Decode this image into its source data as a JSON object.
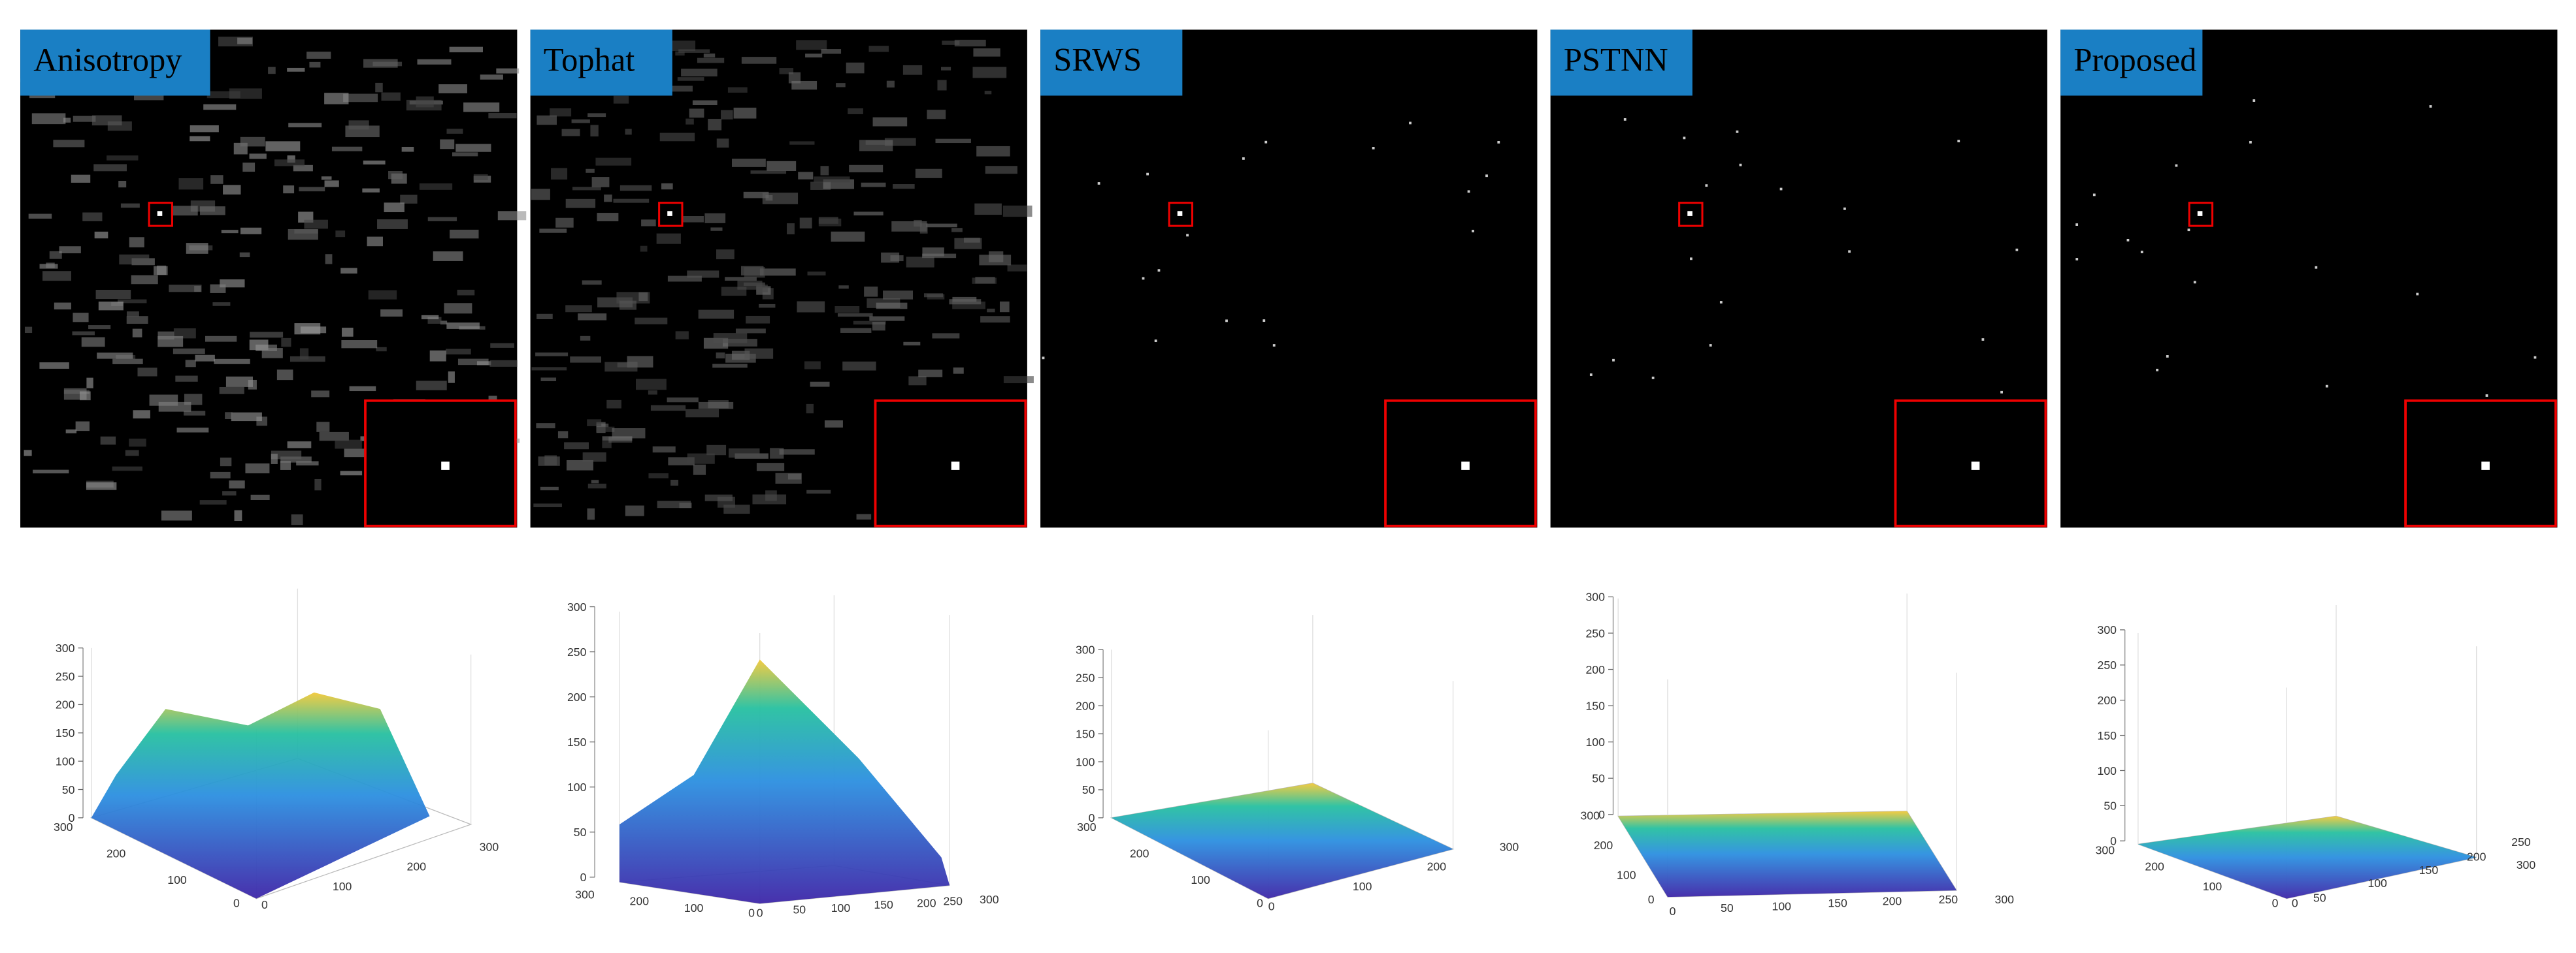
{
  "panels": [
    {
      "label": "Anisotropy"
    },
    {
      "label": "Tophat"
    },
    {
      "label": "SRWS"
    },
    {
      "label": "PSTNN"
    },
    {
      "label": "Proposed"
    }
  ],
  "plots": [
    {
      "zticks": [
        "0",
        "50",
        "100",
        "150",
        "200",
        "250",
        "300"
      ],
      "yticks": [
        "300",
        "200",
        "100",
        "0"
      ],
      "xticks": [
        "0",
        "100",
        "200",
        "300"
      ]
    },
    {
      "zticks": [
        "0",
        "50",
        "100",
        "150",
        "200",
        "250",
        "300"
      ],
      "yticks": [
        "300",
        "200",
        "100",
        "0"
      ],
      "xticks": [
        "0",
        "50",
        "100",
        "150",
        "200",
        "250",
        "300"
      ]
    },
    {
      "zticks": [
        "0",
        "50",
        "100",
        "150",
        "200",
        "250",
        "300"
      ],
      "yticks": [
        "300",
        "200",
        "100",
        "0"
      ],
      "xticks": [
        "0",
        "100",
        "200",
        "300"
      ]
    },
    {
      "zticks": [
        "0",
        "50",
        "100",
        "150",
        "200",
        "250",
        "300"
      ],
      "yticks": [
        "300",
        "200",
        "100",
        "0"
      ],
      "xticks": [
        "0",
        "50",
        "100",
        "150",
        "200",
        "250",
        "300"
      ]
    },
    {
      "zticks": [
        "0",
        "50",
        "100",
        "150",
        "200",
        "250",
        "300"
      ],
      "yticks": [
        "300",
        "200",
        "100",
        "0"
      ],
      "xticks": [
        "0",
        "50",
        "100",
        "150",
        "200",
        "250",
        "300"
      ]
    }
  ]
}
